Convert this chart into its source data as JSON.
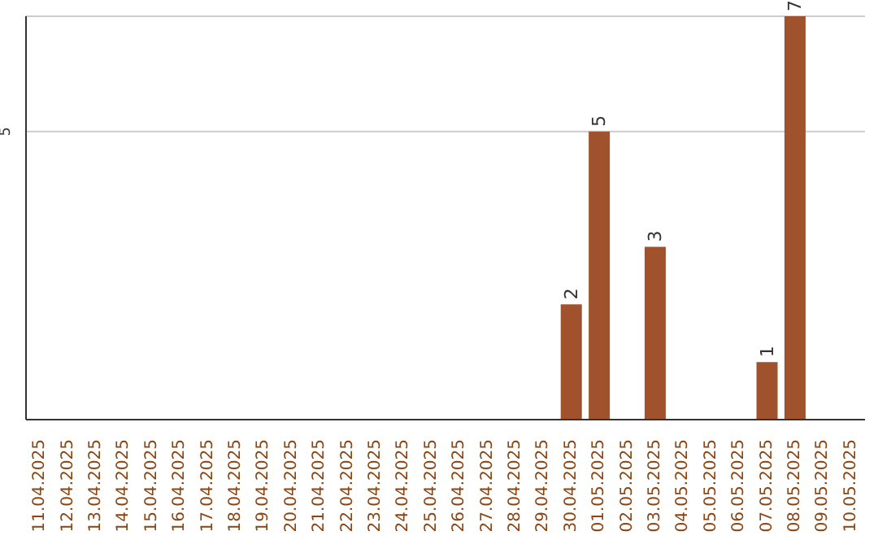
{
  "chart_data": {
    "type": "bar",
    "categories": [
      "11.04.2025",
      "12.04.2025",
      "13.04.2025",
      "14.04.2025",
      "15.04.2025",
      "16.04.2025",
      "17.04.2025",
      "18.04.2025",
      "19.04.2025",
      "20.04.2025",
      "21.04.2025",
      "22.04.2025",
      "23.04.2025",
      "24.04.2025",
      "25.04.2025",
      "26.04.2025",
      "27.04.2025",
      "28.04.2025",
      "29.04.2025",
      "30.04.2025",
      "01.05.2025",
      "02.05.2025",
      "03.05.2025",
      "04.05.2025",
      "05.05.2025",
      "06.05.2025",
      "07.05.2025",
      "08.05.2025",
      "09.05.2025",
      "10.05.2025"
    ],
    "values": [
      null,
      null,
      null,
      null,
      null,
      null,
      null,
      null,
      null,
      null,
      null,
      null,
      null,
      null,
      null,
      null,
      null,
      null,
      null,
      2,
      5,
      null,
      3,
      null,
      null,
      null,
      1,
      7,
      null,
      null
    ],
    "color": "#a0522d",
    "ylim": [
      0,
      7
    ],
    "yticks": [
      5
    ],
    "grid": "y",
    "data_labels": true
  }
}
